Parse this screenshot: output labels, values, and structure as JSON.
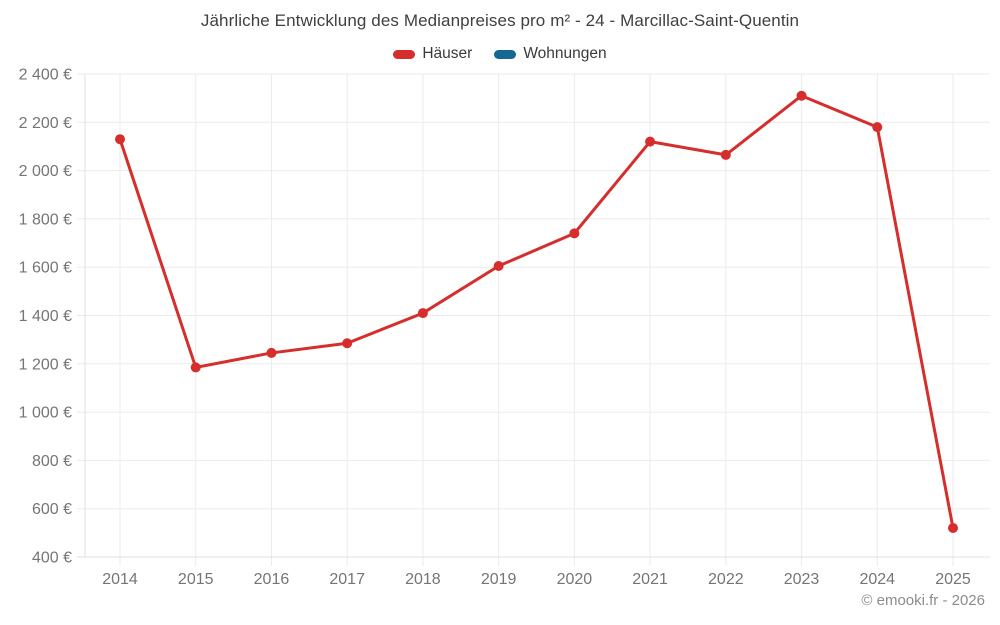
{
  "header": {
    "title": "Jährliche Entwicklung des Medianpreises pro m² - 24 - Marcillac-Saint-Quentin"
  },
  "legend": {
    "items": [
      {
        "label": "Häuser",
        "color": "#d62d2d"
      },
      {
        "label": "Wohnungen",
        "color": "#156990"
      }
    ]
  },
  "chart_data": {
    "type": "line",
    "title": "Jährliche Entwicklung des Medianpreises pro m² - 24 - Marcillac-Saint-Quentin",
    "categories": [
      "2014",
      "2015",
      "2016",
      "2017",
      "2018",
      "2019",
      "2020",
      "2021",
      "2022",
      "2023",
      "2024",
      "2025"
    ],
    "series": [
      {
        "name": "Häuser",
        "color": "#d62d2d",
        "values": [
          2130,
          1185,
          1245,
          1285,
          1410,
          1605,
          1740,
          2120,
          2065,
          2310,
          2180,
          520
        ]
      },
      {
        "name": "Wohnungen",
        "color": "#156990",
        "values": []
      }
    ],
    "xlabel": "",
    "ylabel": "",
    "ylim": [
      400,
      2400
    ],
    "ytick_step": 200,
    "ytick_format": "{value} €",
    "grid": true,
    "legend_position": "top",
    "colors": {
      "grid_line": "#ebebeb",
      "axis_line": "#e0e0e0",
      "tick_label": "#757575"
    }
  },
  "footer": {
    "copyright": "© emooki.fr - 2026"
  }
}
